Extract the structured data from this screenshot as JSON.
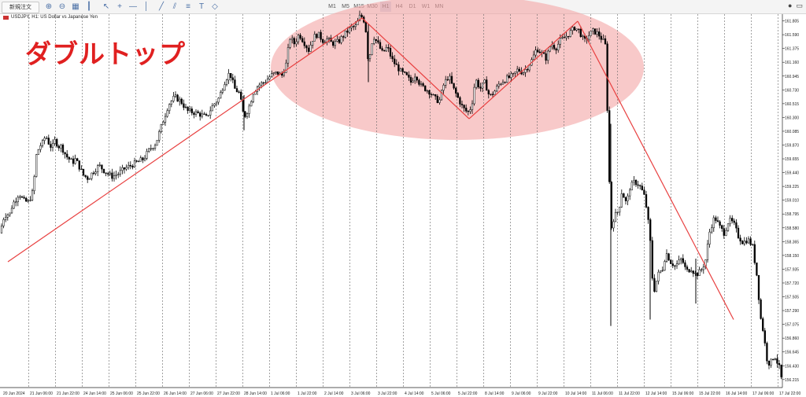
{
  "toolbar": {
    "order_label": "新規注文",
    "icons": [
      "zoom-in-icon",
      "zoom-out-icon",
      "grid-icon",
      "chart-type-icon",
      "cursor-icon",
      "crosshair-icon",
      "hline-icon",
      "vline-icon",
      "trendline-icon",
      "channel-icon",
      "fibo-icon",
      "text-icon",
      "shapes-icon"
    ],
    "timeframes": [
      "M1",
      "M5",
      "M15",
      "M30",
      "H1",
      "H4",
      "D1",
      "W1",
      "MN"
    ],
    "active_timeframe": "H1"
  },
  "symbol_label": "USDJPY, H1: US Dollar vs Japanese Yen",
  "annotation": {
    "title": "ダブルトップ",
    "color": "#e02020"
  },
  "chart_data": {
    "type": "candlestick",
    "symbol": "USDJPY",
    "timeframe": "H1",
    "x_labels": [
      "20 Jun 2024",
      "21 Jun 06:00",
      "21 Jun 22:00",
      "24 Jun 14:00",
      "25 Jun 06:00",
      "25 Jun 22:00",
      "26 Jun 14:00",
      "27 Jun 06:00",
      "27 Jun 22:00",
      "28 Jun 14:00",
      "1 Jul 06:00",
      "1 Jul 22:00",
      "2 Jul 14:00",
      "3 Jul 06:00",
      "3 Jul 22:00",
      "4 Jul 14:00",
      "5 Jul 06:00",
      "5 Jul 22:00",
      "8 Jul 14:00",
      "9 Jul 06:00",
      "9 Jul 22:00",
      "10 Jul 14:00",
      "11 Jul 06:00",
      "11 Jul 22:00",
      "12 Jul 14:00",
      "15 Jul 06:00",
      "15 Jul 22:00",
      "16 Jul 14:00",
      "17 Jul 06:00",
      "17 Jul 22:00"
    ],
    "y_ticks": [
      161.805,
      161.59,
      161.375,
      161.16,
      160.945,
      160.73,
      160.515,
      160.3,
      160.085,
      159.87,
      159.655,
      159.44,
      159.225,
      159.01,
      158.795,
      158.58,
      158.365,
      158.15,
      157.935,
      157.72,
      157.505,
      157.29,
      157.075,
      156.86,
      156.645,
      156.43,
      156.215
    ],
    "ylim": [
      156.09,
      161.91
    ],
    "price_path": [
      [
        0,
        158.5
      ],
      [
        4,
        158.72
      ],
      [
        8,
        158.8
      ],
      [
        12,
        158.78
      ],
      [
        16,
        158.95
      ],
      [
        20,
        159.02
      ],
      [
        24,
        159.12
      ],
      [
        30,
        159.0
      ],
      [
        36,
        158.98
      ],
      [
        42,
        159.15
      ],
      [
        46,
        159.7
      ],
      [
        50,
        159.85
      ],
      [
        54,
        159.9
      ],
      [
        58,
        160.02
      ],
      [
        62,
        159.9
      ],
      [
        66,
        159.82
      ],
      [
        70,
        159.95
      ],
      [
        74,
        159.85
      ],
      [
        78,
        159.85
      ],
      [
        84,
        159.7
      ],
      [
        88,
        159.65
      ],
      [
        92,
        159.6
      ],
      [
        96,
        159.65
      ],
      [
        100,
        159.55
      ],
      [
        106,
        159.4
      ],
      [
        112,
        159.35
      ],
      [
        118,
        159.45
      ],
      [
        126,
        159.55
      ],
      [
        134,
        159.45
      ],
      [
        142,
        159.38
      ],
      [
        150,
        159.42
      ],
      [
        158,
        159.5
      ],
      [
        166,
        159.55
      ],
      [
        174,
        159.6
      ],
      [
        182,
        159.65
      ],
      [
        190,
        159.8
      ],
      [
        198,
        159.9
      ],
      [
        206,
        160.2
      ],
      [
        214,
        160.5
      ],
      [
        222,
        160.62
      ],
      [
        230,
        160.55
      ],
      [
        238,
        160.4
      ],
      [
        246,
        160.38
      ],
      [
        254,
        160.35
      ],
      [
        262,
        160.3
      ],
      [
        270,
        160.48
      ],
      [
        278,
        160.6
      ],
      [
        286,
        160.88
      ],
      [
        292,
        161.0
      ],
      [
        298,
        160.75
      ],
      [
        304,
        160.68
      ],
      [
        310,
        160.3
      ],
      [
        316,
        160.45
      ],
      [
        322,
        160.7
      ],
      [
        328,
        160.8
      ],
      [
        336,
        160.85
      ],
      [
        344,
        160.95
      ],
      [
        352,
        161.0
      ],
      [
        358,
        160.95
      ],
      [
        364,
        161.15
      ],
      [
        368,
        161.55
      ],
      [
        374,
        161.45
      ],
      [
        380,
        161.6
      ],
      [
        386,
        161.48
      ],
      [
        392,
        161.35
      ],
      [
        398,
        161.55
      ],
      [
        404,
        161.6
      ],
      [
        410,
        161.5
      ],
      [
        416,
        161.52
      ],
      [
        422,
        161.45
      ],
      [
        430,
        161.48
      ],
      [
        438,
        161.6
      ],
      [
        446,
        161.7
      ],
      [
        452,
        161.72
      ],
      [
        458,
        161.9
      ],
      [
        464,
        161.78
      ],
      [
        468,
        161.15
      ],
      [
        474,
        161.58
      ],
      [
        480,
        161.45
      ],
      [
        486,
        161.3
      ],
      [
        492,
        161.4
      ],
      [
        498,
        161.2
      ],
      [
        504,
        161.1
      ],
      [
        510,
        161.0
      ],
      [
        516,
        160.95
      ],
      [
        522,
        160.85
      ],
      [
        528,
        160.98
      ],
      [
        534,
        160.8
      ],
      [
        540,
        160.75
      ],
      [
        546,
        160.7
      ],
      [
        552,
        160.6
      ],
      [
        558,
        160.55
      ],
      [
        564,
        160.82
      ],
      [
        570,
        160.95
      ],
      [
        576,
        160.75
      ],
      [
        582,
        160.6
      ],
      [
        588,
        160.45
      ],
      [
        592,
        160.4
      ],
      [
        596,
        160.38
      ],
      [
        600,
        160.55
      ],
      [
        604,
        160.9
      ],
      [
        610,
        160.75
      ],
      [
        616,
        160.85
      ],
      [
        622,
        160.62
      ],
      [
        628,
        160.7
      ],
      [
        634,
        160.82
      ],
      [
        640,
        160.88
      ],
      [
        646,
        160.92
      ],
      [
        652,
        160.95
      ],
      [
        658,
        161.05
      ],
      [
        664,
        161.0
      ],
      [
        670,
        161.08
      ],
      [
        676,
        161.2
      ],
      [
        682,
        161.38
      ],
      [
        688,
        161.3
      ],
      [
        694,
        161.22
      ],
      [
        700,
        161.45
      ],
      [
        706,
        161.38
      ],
      [
        712,
        161.5
      ],
      [
        718,
        161.55
      ],
      [
        724,
        161.62
      ],
      [
        730,
        161.7
      ],
      [
        736,
        161.65
      ],
      [
        742,
        161.48
      ],
      [
        748,
        161.58
      ],
      [
        754,
        161.65
      ],
      [
        760,
        161.6
      ],
      [
        766,
        161.5
      ],
      [
        770,
        161.4
      ],
      [
        772,
        160.2
      ],
      [
        776,
        158.55
      ],
      [
        780,
        158.75
      ],
      [
        786,
        158.85
      ],
      [
        790,
        159.15
      ],
      [
        796,
        158.95
      ],
      [
        800,
        159.2
      ],
      [
        806,
        159.3
      ],
      [
        812,
        159.25
      ],
      [
        818,
        159.1
      ],
      [
        822,
        158.85
      ],
      [
        826,
        158.4
      ],
      [
        830,
        157.55
      ],
      [
        836,
        157.85
      ],
      [
        842,
        157.95
      ],
      [
        846,
        158.2
      ],
      [
        852,
        158.05
      ],
      [
        858,
        157.98
      ],
      [
        866,
        158.1
      ],
      [
        872,
        157.9
      ],
      [
        878,
        157.95
      ],
      [
        884,
        157.85
      ],
      [
        890,
        157.9
      ],
      [
        896,
        158.05
      ],
      [
        902,
        158.55
      ],
      [
        908,
        158.75
      ],
      [
        914,
        158.6
      ],
      [
        920,
        158.5
      ],
      [
        926,
        158.7
      ],
      [
        932,
        158.65
      ],
      [
        938,
        158.45
      ],
      [
        944,
        158.35
      ],
      [
        950,
        158.4
      ],
      [
        956,
        158.3
      ],
      [
        962,
        157.8
      ],
      [
        966,
        157.2
      ],
      [
        970,
        156.95
      ],
      [
        974,
        156.55
      ],
      [
        978,
        156.45
      ],
      [
        984,
        156.6
      ],
      [
        990,
        156.4
      ],
      [
        994,
        156.15
      ]
    ],
    "trend_lines": [
      [
        [
          10,
          158.05
        ],
        [
          314,
          160.62
        ]
      ],
      [
        [
          314,
          160.62
        ],
        [
          460,
          161.85
        ]
      ],
      [
        [
          460,
          161.85
        ],
        [
          596,
          160.28
        ]
      ],
      [
        [
          596,
          160.28
        ],
        [
          734,
          161.8
        ]
      ],
      [
        [
          734,
          161.8
        ],
        [
          932,
          157.15
        ]
      ]
    ],
    "highlight_zone": "double-top region",
    "grid": "vertical-dotted"
  }
}
